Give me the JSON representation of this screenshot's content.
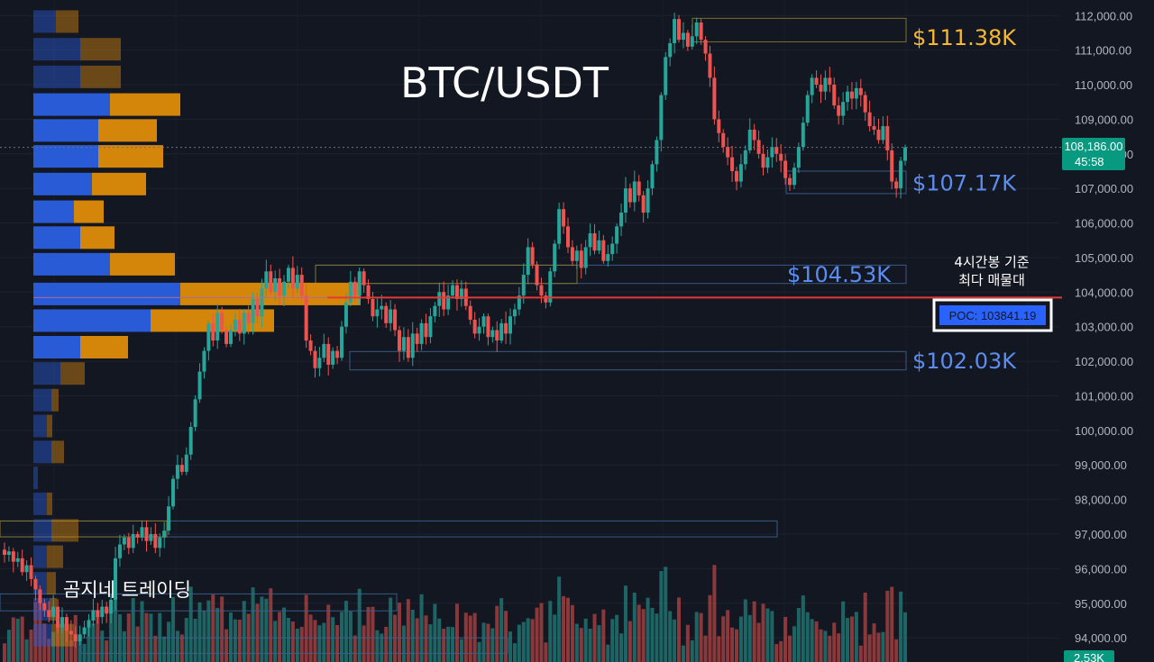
{
  "title": "BTC/USDT",
  "watermark": "곰지네 트레이딩",
  "annotation": {
    "line1": "4시간봉 기준",
    "line2": "최다 매물대"
  },
  "poc_label": "POC: 103841.19",
  "current_price": {
    "price": "108,186.00",
    "countdown": "45:58"
  },
  "volume_tag": "2.53K",
  "colors": {
    "background": "#131722",
    "up": "#26a69a",
    "down": "#ef5350",
    "resistance_label": "#f5b82e",
    "support_label": "#5b8def",
    "poc_line": "#e53935",
    "vp_blue": "#2a5bd7",
    "vp_orange": "#d4860b"
  },
  "chart_data": {
    "type": "candlestick",
    "y_axis_ticks": [
      "112,000.00",
      "111,000.00",
      "110,000.00",
      "109,000.00",
      "108,000.00",
      "107,000.00",
      "106,000.00",
      "105,000.00",
      "104,000.00",
      "103,000.00",
      "102,000.00",
      "101,000.00",
      "100,000.00",
      "99,000.00",
      "98,000.00",
      "97,000.00",
      "96,000.00",
      "95,000.00",
      "94,000.00"
    ],
    "ylim": [
      93300,
      112450
    ],
    "levels": [
      {
        "label": "$111.38K",
        "price": 111380,
        "kind": "resistance"
      },
      {
        "label": "$107.17K",
        "price": 107170,
        "kind": "support"
      },
      {
        "label": "$104.53K",
        "price": 104530,
        "kind": "support"
      },
      {
        "label": "$102.03K",
        "price": 102030,
        "kind": "support"
      }
    ],
    "poc_price": 103841.19,
    "current_price": 108186,
    "closes": [
      96400,
      96500,
      96200,
      96300,
      95900,
      96100,
      95700,
      95400,
      95000,
      94800,
      94600,
      94900,
      94300,
      94600,
      94200,
      94100,
      93900,
      94100,
      94300,
      94500,
      94800,
      94600,
      94900,
      94700,
      95100,
      96300,
      96700,
      96900,
      96600,
      97000,
      96900,
      97200,
      96800,
      97000,
      96600,
      96900,
      97100,
      97800,
      98600,
      99000,
      98800,
      99300,
      100100,
      100900,
      101700,
      102300,
      103100,
      102600,
      103400,
      102900,
      102500,
      102900,
      103200,
      102800,
      103400,
      103100,
      103800,
      103300,
      104100,
      104600,
      104000,
      104400,
      103900,
      104300,
      104700,
      104100,
      104500,
      103900,
      102600,
      102300,
      101800,
      102100,
      102500,
      101900,
      102300,
      102100,
      103000,
      103700,
      104300,
      103900,
      104600,
      104200,
      103800,
      103300,
      103500,
      103600,
      103100,
      103500,
      102900,
      102300,
      102700,
      102100,
      102800,
      102500,
      103100,
      102700,
      103300,
      103600,
      104000,
      103500,
      103900,
      104200,
      103800,
      104100,
      103600,
      103200,
      102800,
      103000,
      103300,
      102700,
      102900,
      102600,
      103100,
      102800,
      103300,
      103500,
      103900,
      104500,
      105300,
      104800,
      104200,
      103900,
      103700,
      104600,
      105400,
      106400,
      105900,
      105300,
      104900,
      105200,
      104700,
      105300,
      105700,
      105200,
      105500,
      104900,
      105100,
      105400,
      105900,
      106300,
      107000,
      106600,
      107200,
      106800,
      106300,
      107000,
      107700,
      108400,
      109700,
      110800,
      111200,
      111900,
      111300,
      111500,
      111100,
      111400,
      111800,
      111300,
      110900,
      110200,
      109000,
      108600,
      108200,
      107900,
      107500,
      107200,
      107700,
      108100,
      108700,
      108400,
      108000,
      107600,
      107900,
      108200,
      108000,
      107800,
      107300,
      107100,
      107600,
      108200,
      108900,
      109700,
      110200,
      110000,
      109800,
      110200,
      110000,
      109400,
      109100,
      109500,
      109800,
      109600,
      109900,
      109700,
      109200,
      108800,
      108700,
      108400,
      108800,
      108100,
      107200,
      107000,
      107800,
      108186
    ]
  }
}
